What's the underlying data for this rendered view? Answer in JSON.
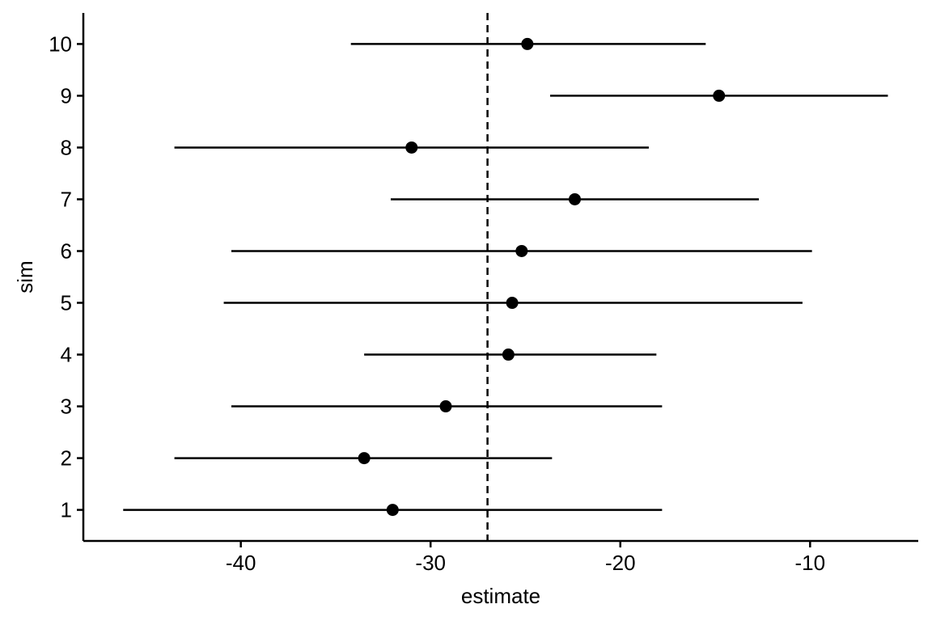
{
  "chart_data": {
    "type": "scatter",
    "subtype": "forest-plot",
    "title": "",
    "xlabel": "estimate",
    "ylabel": "sim",
    "xlim": [
      -48.3,
      -4.3
    ],
    "ylim": [
      0.4,
      10.6
    ],
    "xticks": [
      -40,
      -30,
      -20,
      -10
    ],
    "xtick_labels": [
      "-40",
      "-30",
      "-20",
      "-10"
    ],
    "yticks": [
      1,
      2,
      3,
      4,
      5,
      6,
      7,
      8,
      9,
      10
    ],
    "ytick_labels": [
      "1",
      "2",
      "3",
      "4",
      "5",
      "6",
      "7",
      "8",
      "9",
      "10"
    ],
    "reference_line": {
      "x": -27,
      "style": "dashed"
    },
    "grid": false,
    "series": [
      {
        "points": [
          {
            "sim": 1,
            "estimate": -32.0,
            "lower": -46.2,
            "upper": -17.8
          },
          {
            "sim": 2,
            "estimate": -33.5,
            "lower": -43.5,
            "upper": -23.6
          },
          {
            "sim": 3,
            "estimate": -29.2,
            "lower": -40.5,
            "upper": -17.8
          },
          {
            "sim": 4,
            "estimate": -25.9,
            "lower": -33.5,
            "upper": -18.1
          },
          {
            "sim": 5,
            "estimate": -25.7,
            "lower": -40.9,
            "upper": -10.4
          },
          {
            "sim": 6,
            "estimate": -25.2,
            "lower": -40.5,
            "upper": -9.9
          },
          {
            "sim": 7,
            "estimate": -22.4,
            "lower": -32.1,
            "upper": -12.7
          },
          {
            "sim": 8,
            "estimate": -31.0,
            "lower": -43.5,
            "upper": -18.5
          },
          {
            "sim": 9,
            "estimate": -14.8,
            "lower": -23.7,
            "upper": -5.9
          },
          {
            "sim": 10,
            "estimate": -24.9,
            "lower": -34.2,
            "upper": -15.5
          }
        ]
      }
    ]
  }
}
